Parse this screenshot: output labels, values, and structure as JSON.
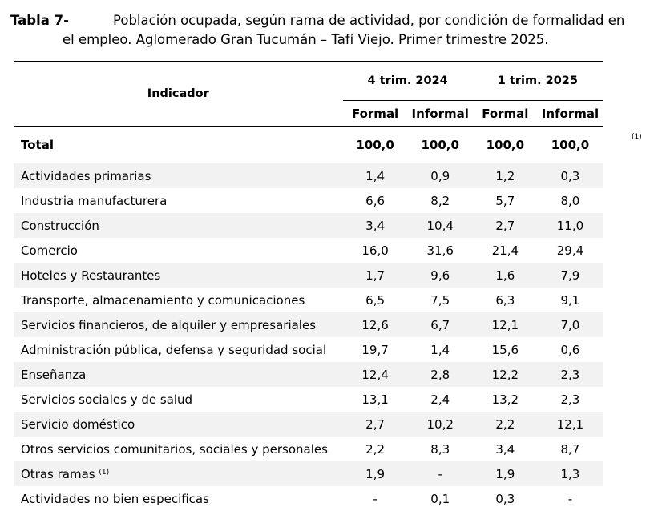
{
  "title": {
    "label": "Tabla 7-",
    "line1": "Población ocupada, según rama de actividad, por condición de formalidad en",
    "line2": "el empleo. Aglomerado Gran Tucumán – Tafí Viejo. Primer trimestre 2025."
  },
  "table": {
    "indicator_header": "Indicador",
    "periods": [
      "4 trim. 2024",
      "1 trim. 2025"
    ],
    "subheaders": [
      "Formal",
      "Informal",
      "Formal",
      "Informal"
    ],
    "total_label": "Total",
    "total_values": [
      "100,0",
      "100,0",
      "100,0",
      "100,0"
    ],
    "total_note": "(1)",
    "rows": [
      {
        "label": "Actividades primarias",
        "note": "",
        "values": [
          "1,4",
          "0,9",
          "1,2",
          "0,3"
        ]
      },
      {
        "label": "Industria manufacturera",
        "note": "",
        "values": [
          "6,6",
          "8,2",
          "5,7",
          "8,0"
        ]
      },
      {
        "label": "Construcción",
        "note": "",
        "values": [
          "3,4",
          "10,4",
          "2,7",
          "11,0"
        ]
      },
      {
        "label": "Comercio",
        "note": "",
        "values": [
          "16,0",
          "31,6",
          "21,4",
          "29,4"
        ]
      },
      {
        "label": "Hoteles y Restaurantes",
        "note": "",
        "values": [
          "1,7",
          "9,6",
          "1,6",
          "7,9"
        ]
      },
      {
        "label": "Transporte, almacenamiento y comunicaciones",
        "note": "",
        "values": [
          "6,5",
          "7,5",
          "6,3",
          "9,1"
        ]
      },
      {
        "label": "Servicios financieros, de alquiler y empresariales",
        "note": "",
        "values": [
          "12,6",
          "6,7",
          "12,1",
          "7,0"
        ]
      },
      {
        "label": "Administración pública, defensa y seguridad social",
        "note": "",
        "values": [
          "19,7",
          "1,4",
          "15,6",
          "0,6"
        ]
      },
      {
        "label": "Enseñanza",
        "note": "",
        "values": [
          "12,4",
          "2,8",
          "12,2",
          "2,3"
        ]
      },
      {
        "label": "Servicios sociales y de salud",
        "note": "",
        "values": [
          "13,1",
          "2,4",
          "13,2",
          "2,3"
        ]
      },
      {
        "label": "Servicio doméstico",
        "note": "",
        "values": [
          "2,7",
          "10,2",
          "2,2",
          "12,1"
        ]
      },
      {
        "label": "Otros servicios comunitarios, sociales y personales",
        "note": "",
        "values": [
          "2,2",
          "8,3",
          "3,4",
          "8,7"
        ]
      },
      {
        "label": "Otras ramas",
        "note": "(1)",
        "values": [
          "1,9",
          "-",
          "1,9",
          "1,3"
        ]
      },
      {
        "label": "Actividades no bien especificas",
        "note": "",
        "values": [
          "-",
          "0,1",
          "0,3",
          "-"
        ]
      }
    ]
  }
}
